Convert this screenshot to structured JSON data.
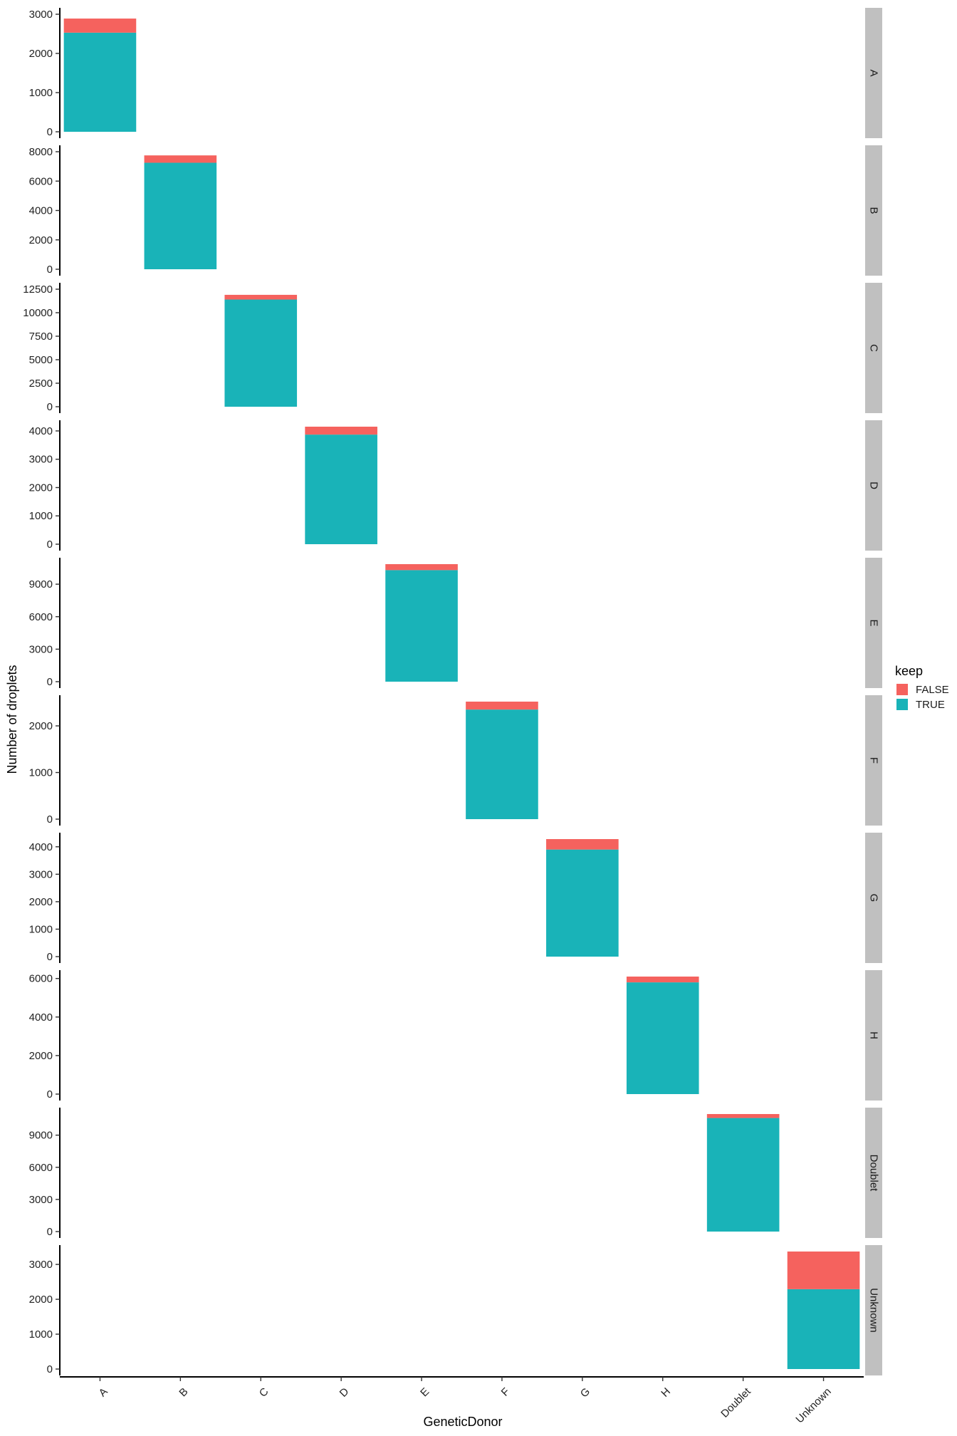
{
  "chart_data": {
    "type": "bar",
    "stacked": true,
    "facet_by": "row",
    "xlabel": "GeneticDonor",
    "ylabel": "Number of droplets",
    "categories": [
      "A",
      "B",
      "C",
      "D",
      "E",
      "F",
      "G",
      "H",
      "Doublet",
      "Unknown"
    ],
    "legend": {
      "title": "keep",
      "placement": "right",
      "entries": [
        {
          "label": "FALSE",
          "color": "#F8766D"
        },
        {
          "label": "TRUE",
          "color": "#00BFC4"
        }
      ]
    },
    "colors": {
      "FALSE": "#F5625E",
      "TRUE": "#19B3B8",
      "strip": "#C0C0C0"
    },
    "panels": [
      {
        "strip": "A",
        "category": "A",
        "true_value": 2530,
        "false_value": 360,
        "ylim": [
          0,
          3000
        ],
        "ticks": [
          0,
          1000,
          2000,
          3000
        ]
      },
      {
        "strip": "B",
        "category": "B",
        "true_value": 7250,
        "false_value": 500,
        "ylim": [
          0,
          8000
        ],
        "ticks": [
          0,
          2000,
          4000,
          6000,
          8000
        ]
      },
      {
        "strip": "C",
        "category": "C",
        "true_value": 11400,
        "false_value": 500,
        "ylim": [
          0,
          12500
        ],
        "ticks": [
          0,
          2500,
          5000,
          7500,
          10000,
          12500
        ]
      },
      {
        "strip": "D",
        "category": "D",
        "true_value": 3870,
        "false_value": 280,
        "ylim": [
          0,
          4150
        ],
        "ticks": [
          0,
          1000,
          2000,
          3000,
          4000
        ]
      },
      {
        "strip": "E",
        "category": "E",
        "true_value": 10300,
        "false_value": 550,
        "ylim": [
          0,
          10850
        ],
        "ticks": [
          0,
          3000,
          6000,
          9000
        ]
      },
      {
        "strip": "F",
        "category": "F",
        "true_value": 2350,
        "false_value": 170,
        "ylim": [
          0,
          2520
        ],
        "ticks": [
          0,
          1000,
          2000
        ]
      },
      {
        "strip": "G",
        "category": "G",
        "true_value": 3900,
        "false_value": 380,
        "ylim": [
          0,
          4280
        ],
        "ticks": [
          0,
          1000,
          2000,
          3000,
          4000
        ]
      },
      {
        "strip": "H",
        "category": "H",
        "true_value": 5800,
        "false_value": 300,
        "ylim": [
          0,
          6100
        ],
        "ticks": [
          0,
          2000,
          4000,
          6000
        ]
      },
      {
        "strip": "Doublet",
        "category": "Doublet",
        "true_value": 10600,
        "false_value": 370,
        "ylim": [
          0,
          10970
        ],
        "ticks": [
          0,
          3000,
          6000,
          9000
        ]
      },
      {
        "strip": "Unknown",
        "category": "Unknown",
        "true_value": 2290,
        "false_value": 1080,
        "ylim": [
          0,
          3370
        ],
        "ticks": [
          0,
          1000,
          2000,
          3000
        ]
      }
    ]
  }
}
